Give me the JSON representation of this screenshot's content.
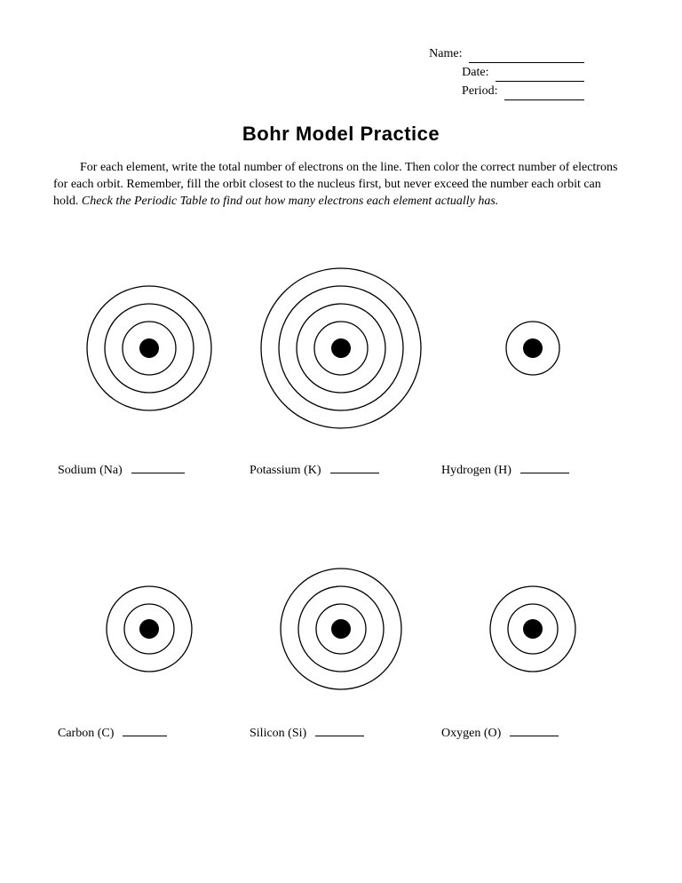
{
  "header": {
    "name_label": "Name:",
    "date_label": "Date:",
    "period_label": "Period:",
    "name_blank_width": 130,
    "date_blank_width": 100,
    "period_blank_width": 90
  },
  "title": "Bohr Model Practice",
  "instructions": {
    "text_part1": "For each element, write the total number of electrons on the line.  Then color the correct number of electrons for each orbit.  Remember, fill the orbit closest to the nucleus first, but never exceed the number each orbit can hold.  ",
    "text_italic": "Check the Periodic Table to find out how many electrons each element actually has."
  },
  "diagrams": {
    "stroke_color": "#000000",
    "stroke_width": 1.3,
    "nucleus_color": "#000000",
    "nucleus_radius": 11,
    "background_color": "#ffffff",
    "row1": [
      {
        "name": "sodium",
        "label": "Sodium  (Na)",
        "svg_size": 170,
        "orbits": [
          30,
          50,
          70
        ],
        "answer_line_width": 60
      },
      {
        "name": "potassium",
        "label": "Potassium (K)",
        "svg_size": 200,
        "orbits": [
          30,
          50,
          70,
          90
        ],
        "answer_line_width": 55
      },
      {
        "name": "hydrogen",
        "label": "Hydrogen (H)",
        "svg_size": 90,
        "orbits": [
          30
        ],
        "answer_line_width": 55
      }
    ],
    "row2": [
      {
        "name": "carbon",
        "label": "Carbon (C)",
        "svg_size": 130,
        "orbits": [
          28,
          48
        ],
        "answer_line_width": 50
      },
      {
        "name": "silicon",
        "label": "Silicon  (Si)",
        "svg_size": 160,
        "orbits": [
          28,
          48,
          68
        ],
        "answer_line_width": 55
      },
      {
        "name": "oxygen",
        "label": "Oxygen (O)",
        "svg_size": 130,
        "orbits": [
          28,
          48
        ],
        "answer_line_width": 55
      }
    ]
  }
}
